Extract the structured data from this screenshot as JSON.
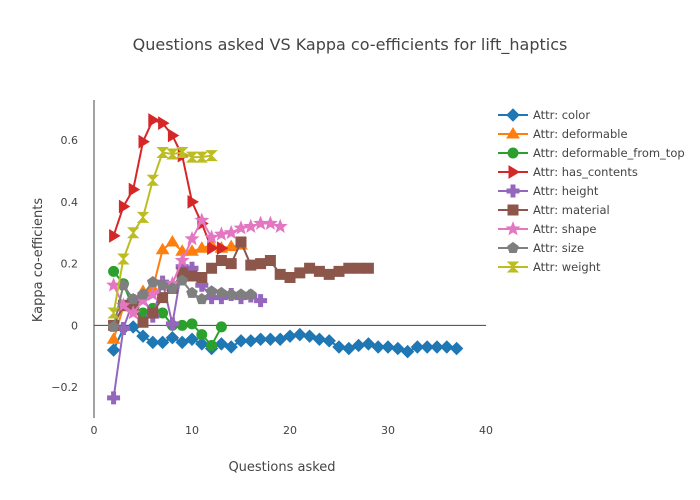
{
  "chart_data": {
    "type": "line",
    "title": "Questions asked VS Kappa co-efficients for lift_haptics",
    "xlabel": "Questions asked",
    "ylabel": "Kappa co-efficients",
    "xlim": [
      0,
      40
    ],
    "ylim": [
      -0.3,
      0.73
    ],
    "xticks": [
      0,
      10,
      20,
      30,
      40
    ],
    "yticks": [
      -0.2,
      0,
      0.2,
      0.4,
      0.6
    ],
    "xtick_labels": [
      "0",
      "10",
      "20",
      "30",
      "40"
    ],
    "ytick_labels": [
      "−0.2",
      "0",
      "0.2",
      "0.4",
      "0.6"
    ],
    "grid": false,
    "legend_position": "right",
    "series": [
      {
        "name": "Attr: color",
        "color": "#1f77b4",
        "marker": "diamond",
        "x": [
          2,
          3,
          4,
          5,
          6,
          7,
          8,
          9,
          10,
          11,
          12,
          13,
          14,
          15,
          16,
          17,
          18,
          19,
          20,
          21,
          22,
          23,
          24,
          25,
          26,
          27,
          28,
          29,
          30,
          31,
          32,
          33,
          34,
          35,
          36,
          37
        ],
        "y": [
          -0.08,
          -0.01,
          -0.005,
          -0.035,
          -0.055,
          -0.055,
          -0.04,
          -0.055,
          -0.045,
          -0.06,
          -0.075,
          -0.06,
          -0.07,
          -0.05,
          -0.05,
          -0.045,
          -0.045,
          -0.045,
          -0.035,
          -0.03,
          -0.035,
          -0.045,
          -0.05,
          -0.07,
          -0.075,
          -0.065,
          -0.06,
          -0.07,
          -0.07,
          -0.075,
          -0.085,
          -0.07,
          -0.07,
          -0.07,
          -0.07,
          -0.075
        ]
      },
      {
        "name": "Attr: deformable",
        "color": "#ff7f0e",
        "marker": "triangle-up",
        "x": [
          2,
          3,
          4,
          5,
          6,
          7,
          8,
          9,
          10,
          11,
          12,
          13,
          14,
          15
        ],
        "y": [
          -0.045,
          0.06,
          0.07,
          0.11,
          0.12,
          0.245,
          0.27,
          0.24,
          0.24,
          0.25,
          0.26,
          0.25,
          0.255,
          0.26
        ]
      },
      {
        "name": "Attr: deformable_from_top",
        "color": "#2ca02c",
        "marker": "circle",
        "x": [
          2,
          3,
          4,
          5,
          6,
          7,
          8,
          9,
          10,
          11,
          12,
          13
        ],
        "y": [
          0.175,
          0.135,
          0.055,
          0.04,
          0.055,
          0.04,
          0.0,
          0.0,
          0.005,
          -0.03,
          -0.065,
          -0.005
        ]
      },
      {
        "name": "Attr: has_contents",
        "color": "#d62728",
        "marker": "triangle-right",
        "x": [
          2,
          3,
          4,
          5,
          6,
          7,
          8,
          9,
          10,
          11,
          12,
          13
        ],
        "y": [
          0.29,
          0.385,
          0.44,
          0.595,
          0.665,
          0.655,
          0.615,
          0.55,
          0.4,
          0.33,
          0.25,
          0.25
        ]
      },
      {
        "name": "Attr: height",
        "color": "#9467bd",
        "marker": "cross",
        "x": [
          2,
          3,
          4,
          5,
          6,
          7,
          8,
          9,
          10,
          11,
          12,
          13,
          14,
          15,
          16,
          17
        ],
        "y": [
          -0.235,
          -0.01,
          0.08,
          0.09,
          0.03,
          0.14,
          0.005,
          0.19,
          0.185,
          0.13,
          0.09,
          0.09,
          0.1,
          0.09,
          0.095,
          0.08
        ]
      },
      {
        "name": "Attr: material",
        "color": "#8c564b",
        "marker": "square",
        "x": [
          2,
          3,
          4,
          5,
          6,
          7,
          8,
          9,
          10,
          11,
          12,
          13,
          14,
          15,
          16,
          17,
          18,
          19,
          20,
          21,
          22,
          23,
          24,
          25,
          26,
          27,
          28
        ],
        "y": [
          0.0,
          0.065,
          0.06,
          0.01,
          0.04,
          0.09,
          0.12,
          0.17,
          0.16,
          0.155,
          0.185,
          0.21,
          0.2,
          0.27,
          0.195,
          0.2,
          0.21,
          0.165,
          0.155,
          0.17,
          0.185,
          0.175,
          0.165,
          0.175,
          0.185,
          0.185,
          0.185
        ]
      },
      {
        "name": "Attr: shape",
        "color": "#e377c2",
        "marker": "star",
        "x": [
          2,
          3,
          4,
          5,
          6,
          7,
          8,
          9,
          10,
          11,
          12,
          13,
          14,
          15,
          16,
          17,
          18,
          19
        ],
        "y": [
          0.13,
          0.065,
          0.04,
          0.08,
          0.1,
          0.13,
          0.135,
          0.21,
          0.28,
          0.34,
          0.285,
          0.295,
          0.3,
          0.315,
          0.32,
          0.33,
          0.33,
          0.32
        ]
      },
      {
        "name": "Attr: size",
        "color": "#7f7f7f",
        "marker": "pentagon",
        "x": [
          2,
          3,
          4,
          5,
          6,
          7,
          8,
          9,
          10,
          11,
          12,
          13,
          14,
          15,
          16
        ],
        "y": [
          -0.005,
          0.13,
          0.085,
          0.1,
          0.14,
          0.13,
          0.12,
          0.145,
          0.105,
          0.085,
          0.11,
          0.105,
          0.1,
          0.1,
          0.1
        ]
      },
      {
        "name": "Attr: weight",
        "color": "#bcbd22",
        "marker": "hourglass",
        "x": [
          2,
          3,
          4,
          5,
          6,
          7,
          8,
          9,
          10,
          11,
          12
        ],
        "y": [
          0.04,
          0.215,
          0.3,
          0.35,
          0.47,
          0.56,
          0.555,
          0.56,
          0.545,
          0.545,
          0.55
        ]
      }
    ]
  }
}
